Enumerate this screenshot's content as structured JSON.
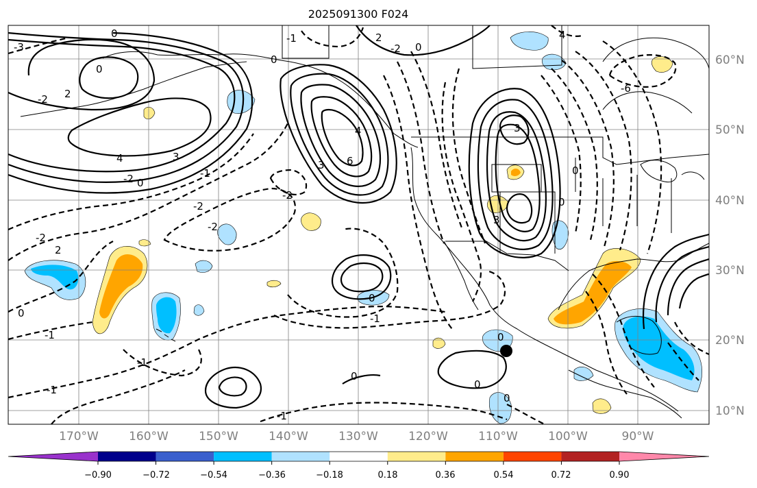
{
  "title": "2025091300 F024",
  "map": {
    "lat_labels": [
      "60°N",
      "50°N",
      "40°N",
      "30°N",
      "20°N",
      "10°N"
    ],
    "lon_labels": [
      "170°W",
      "160°W",
      "150°W",
      "140°W",
      "130°W",
      "120°W",
      "110°W",
      "100°W",
      "90°W"
    ],
    "contour_labels": [
      {
        "text": "-3"
      },
      {
        "text": "0"
      },
      {
        "text": "0"
      },
      {
        "text": "-2"
      },
      {
        "text": "2"
      },
      {
        "text": "4"
      },
      {
        "text": "3"
      },
      {
        "text": "-2"
      },
      {
        "text": "0"
      },
      {
        "text": "-1"
      },
      {
        "text": "-2"
      },
      {
        "text": "-2"
      },
      {
        "text": "-2"
      },
      {
        "text": "-2"
      },
      {
        "text": "2"
      },
      {
        "text": "0"
      },
      {
        "text": "-1"
      },
      {
        "text": "-1"
      },
      {
        "text": "3"
      },
      {
        "text": "6"
      },
      {
        "text": "4"
      },
      {
        "text": "-1"
      },
      {
        "text": "0"
      },
      {
        "text": "-1"
      },
      {
        "text": "-1"
      },
      {
        "text": "0"
      },
      {
        "text": "0"
      },
      {
        "text": "-1"
      },
      {
        "text": "2"
      },
      {
        "text": "-2"
      },
      {
        "text": "0"
      },
      {
        "text": "4"
      },
      {
        "text": "3"
      },
      {
        "text": "3"
      },
      {
        "text": "0"
      },
      {
        "text": "0"
      },
      {
        "text": "-6"
      },
      {
        "text": "0"
      },
      {
        "text": "0"
      },
      {
        "text": "0"
      }
    ]
  },
  "colorbar": {
    "ticks": [
      "−0.90",
      "−0.72",
      "−0.54",
      "−0.36",
      "−0.18",
      "0.18",
      "0.36",
      "0.54",
      "0.72",
      "0.90"
    ],
    "colors": [
      "#9932cc",
      "#00008b",
      "#3a5fcd",
      "#00bfff",
      "#b0e2ff",
      "#ffffff",
      "#ffec8b",
      "#ffa500",
      "#ff4500",
      "#b22222",
      "#ff88aa"
    ]
  }
}
